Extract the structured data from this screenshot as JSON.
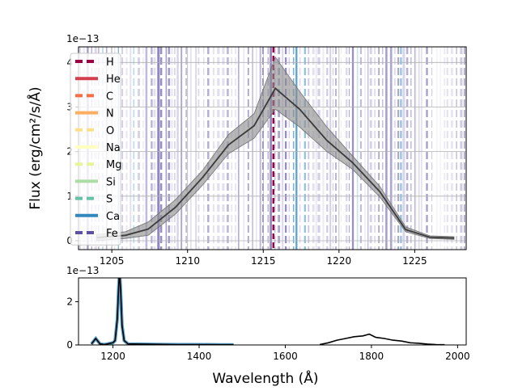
{
  "chart_data": [
    {
      "type": "line",
      "panel": "top",
      "ylabel": "Flux (erg/cm²/s/Å)",
      "offset_text": "1e−13",
      "y_scale": 1e-13,
      "xlim": [
        1202.8,
        1228.4
      ],
      "ylim": [
        -0.2,
        4.35
      ],
      "xticks": [
        1205,
        1210,
        1215,
        1220,
        1225
      ],
      "yticks": [
        0,
        1,
        2,
        3,
        4
      ],
      "grid": true,
      "series": [
        {
          "kind": "mean",
          "x": [
            1204.0,
            1205.9,
            1207.4,
            1209.2,
            1211.0,
            1212.7,
            1214.4,
            1215.8,
            1217.4,
            1219.2,
            1220.9,
            1222.7,
            1224.4,
            1226.0,
            1227.6
          ],
          "y": [
            0.07,
            0.12,
            0.26,
            0.75,
            1.42,
            2.15,
            2.58,
            3.42,
            2.95,
            2.25,
            1.75,
            1.1,
            0.25,
            0.08,
            0.06
          ]
        },
        {
          "kind": "band",
          "x": [
            1204.0,
            1205.9,
            1207.4,
            1209.2,
            1211.0,
            1212.7,
            1214.4,
            1215.8,
            1217.4,
            1219.2,
            1220.9,
            1222.7,
            1224.4,
            1226.0,
            1227.6
          ],
          "lower": [
            0.0,
            0.05,
            0.12,
            0.6,
            1.25,
            1.95,
            2.3,
            2.95,
            2.55,
            2.0,
            1.6,
            0.98,
            0.2,
            0.05,
            0.03
          ],
          "upper": [
            0.14,
            0.2,
            0.42,
            0.92,
            1.58,
            2.38,
            2.85,
            4.12,
            3.35,
            2.55,
            1.9,
            1.22,
            0.31,
            0.11,
            0.09
          ]
        }
      ],
      "legend": {
        "placement": "upper-left",
        "entries": [
          {
            "label": "H",
            "color": "#9e0142",
            "dash": "dashed"
          },
          {
            "label": "He",
            "color": "#d53e4f",
            "dash": "solid"
          },
          {
            "label": "C",
            "color": "#f46d43",
            "dash": "dashed"
          },
          {
            "label": "N",
            "color": "#fdae61",
            "dash": "solid"
          },
          {
            "label": "O",
            "color": "#fee08b",
            "dash": "dashed"
          },
          {
            "label": "Na",
            "color": "#ffffbf",
            "dash": "solid"
          },
          {
            "label": "Mg",
            "color": "#e6f598",
            "dash": "dashed"
          },
          {
            "label": "Si",
            "color": "#abdda4",
            "dash": "solid"
          },
          {
            "label": "S",
            "color": "#66c2a5",
            "dash": "dashed"
          },
          {
            "label": "Ca",
            "color": "#3288bd",
            "dash": "solid"
          },
          {
            "label": "Fe",
            "color": "#5e4fa2",
            "dash": "dashed"
          }
        ]
      },
      "line_markers": [
        {
          "x": 1215.67,
          "color": "#9e0142",
          "dash": "dashed"
        }
      ]
    },
    {
      "type": "line",
      "panel": "bottom",
      "xlabel": "Wavelength (Å)",
      "offset_text": "1e−13",
      "xlim": [
        1120,
        2020
      ],
      "ylim": [
        0,
        3.1
      ],
      "xticks": [
        1200,
        1400,
        1600,
        1800,
        2000
      ],
      "yticks": [
        0,
        2
      ],
      "grid": false,
      "series": [
        {
          "kind": "spectrum",
          "x": [
            1150,
            1160,
            1170,
            1180,
            1190,
            1200,
            1205,
            1210,
            1213,
            1215,
            1216,
            1218,
            1221,
            1226,
            1235,
            1260,
            1300,
            1350,
            1400,
            1450,
            1480
          ],
          "y": [
            0.05,
            0.3,
            0.05,
            0.02,
            0.06,
            0.1,
            0.2,
            1.2,
            2.6,
            3.4,
            3.2,
            2.4,
            0.9,
            0.2,
            0.05,
            0.04,
            0.03,
            0.02,
            0.02,
            0.01,
            0.01
          ]
        },
        {
          "kind": "spectrum",
          "x": [
            1680,
            1700,
            1720,
            1740,
            1760,
            1780,
            1795,
            1810,
            1830,
            1850,
            1870,
            1890,
            1910,
            1930,
            1950,
            1970
          ],
          "y": [
            0.02,
            0.1,
            0.22,
            0.3,
            0.38,
            0.42,
            0.5,
            0.35,
            0.3,
            0.22,
            0.18,
            0.1,
            0.08,
            0.04,
            0.02,
            0.01
          ]
        }
      ]
    }
  ]
}
